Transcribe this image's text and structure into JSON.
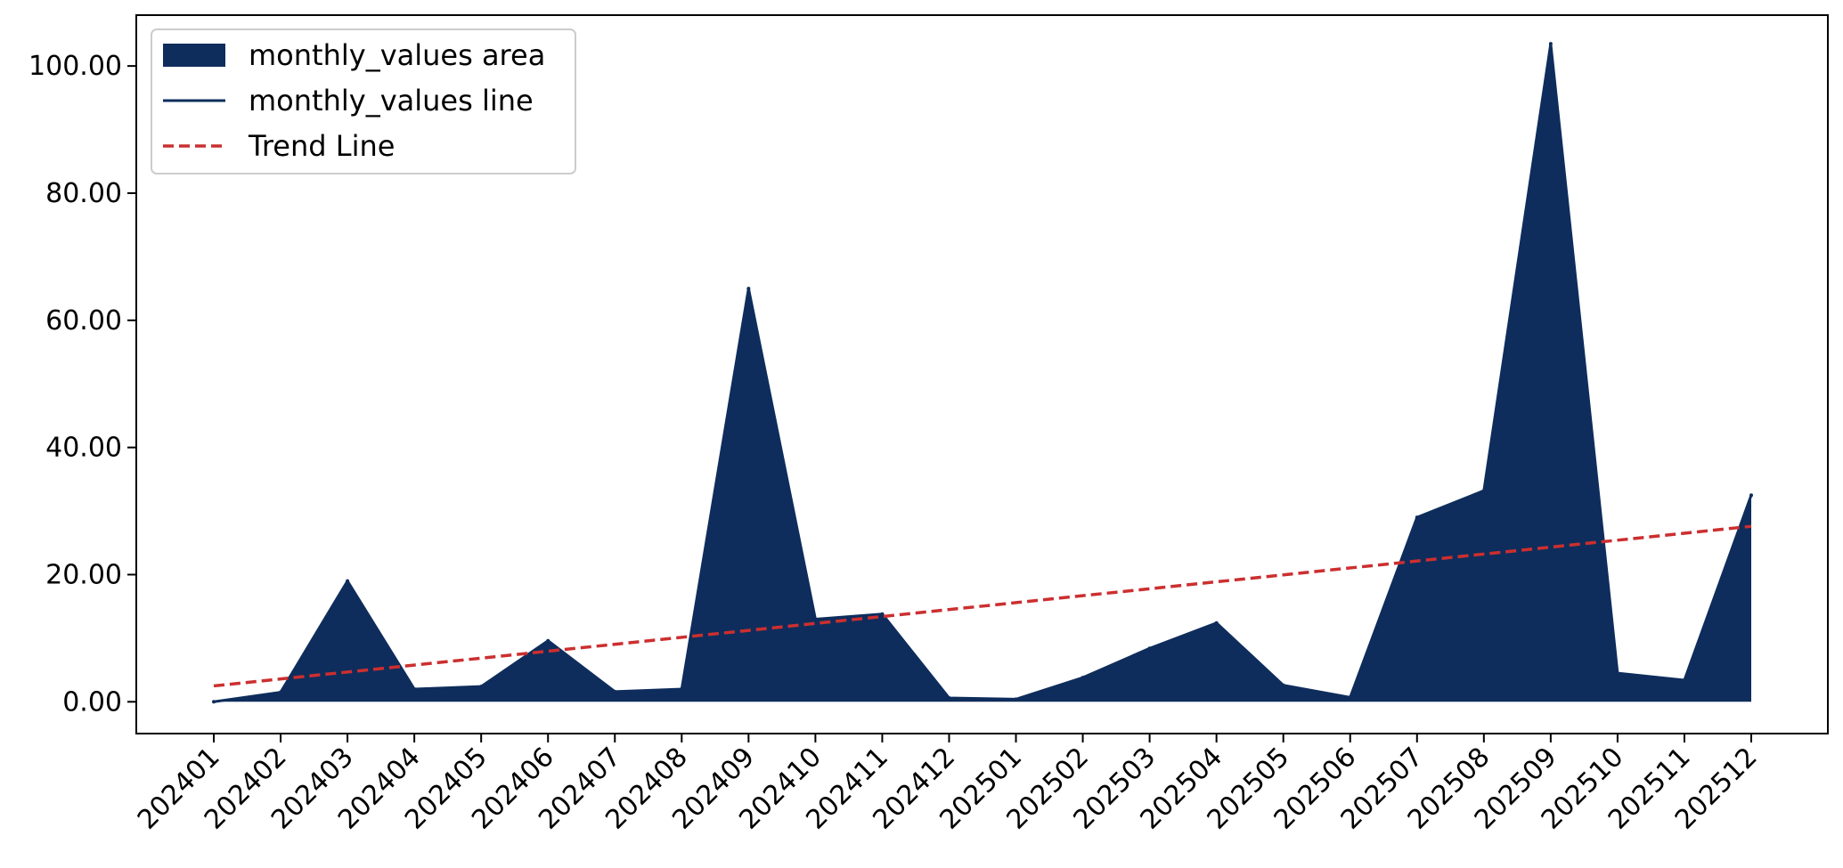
{
  "chart_data": {
    "type": "area",
    "categories": [
      "202401",
      "202402",
      "202403",
      "202404",
      "202405",
      "202406",
      "202407",
      "202408",
      "202409",
      "202410",
      "202411",
      "202412",
      "202501",
      "202502",
      "202503",
      "202504",
      "202505",
      "202506",
      "202507",
      "202508",
      "202509",
      "202510",
      "202511",
      "202512"
    ],
    "series": [
      {
        "name": "monthly_values area",
        "kind": "area",
        "values": [
          0.0,
          1.5,
          19.0,
          2.0,
          2.4,
          9.6,
          1.6,
          2.0,
          65.0,
          13.0,
          13.8,
          0.6,
          0.4,
          3.8,
          8.4,
          12.4,
          2.6,
          0.7,
          29.0,
          33.2,
          103.5,
          4.5,
          3.4,
          32.5
        ]
      },
      {
        "name": "monthly_values line",
        "kind": "line",
        "values": [
          0.0,
          1.5,
          19.0,
          2.0,
          2.4,
          9.6,
          1.6,
          2.0,
          65.0,
          13.0,
          13.8,
          0.6,
          0.4,
          3.8,
          8.4,
          12.4,
          2.6,
          0.7,
          29.0,
          33.2,
          103.5,
          4.5,
          3.4,
          32.5
        ]
      },
      {
        "name": "Trend Line",
        "kind": "trend",
        "start": 2.5,
        "end": 27.6
      }
    ],
    "title": "",
    "xlabel": "",
    "ylabel": "",
    "ylim": [
      -5,
      108
    ],
    "yticks": [
      0,
      20,
      40,
      60,
      80,
      100
    ],
    "ytick_labels": [
      "0.00",
      "20.00",
      "40.00",
      "60.00",
      "80.00",
      "100.00"
    ],
    "grid": false,
    "legend_position": "top-left",
    "colors": {
      "area": "#0e2d5c",
      "line": "#0e2d5c",
      "trend": "#cc2f2f"
    }
  }
}
